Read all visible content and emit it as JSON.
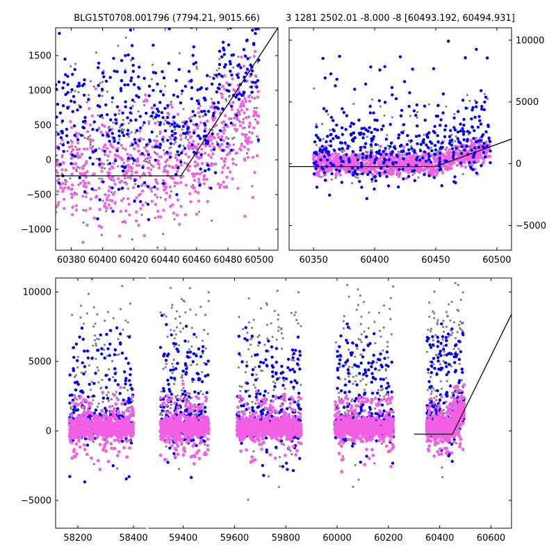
{
  "titles": {
    "left": "BLG15T0708.001796 (7794.21, 9015.66)",
    "right": "3 1281 2502.01 -8.000 -8 [60493.192, 60494.931]"
  },
  "colors": {
    "blue": "#0000ff",
    "magenta": "#f35fe5",
    "gray": "#808080",
    "line": "#000000"
  },
  "chart_data": [
    {
      "type": "scatter",
      "panel": "top-left",
      "xlim": [
        60370,
        60512
      ],
      "ylim": [
        -1300,
        1900
      ],
      "xticks": [
        60380,
        60400,
        60420,
        60440,
        60460,
        60480,
        60500
      ],
      "yticks": [
        -1000,
        -500,
        0,
        500,
        1000,
        1500
      ],
      "y_axis_side": "left",
      "model_line": [
        [
          60370,
          -230
        ],
        [
          60450,
          -230
        ],
        [
          60512,
          1900
        ]
      ],
      "series": [
        {
          "color": "gray",
          "count": 320,
          "x_range": [
            60370,
            60500
          ],
          "y_center": 150,
          "y_spread": 550
        },
        {
          "color": "magenta",
          "count": 620,
          "x_range": [
            60370,
            60500
          ],
          "y_center": -150,
          "y_spread": 420
        },
        {
          "color": "blue",
          "count": 420,
          "x_range": [
            60370,
            60500
          ],
          "y_center": 500,
          "y_spread": 520
        }
      ]
    },
    {
      "type": "scatter",
      "panel": "top-right",
      "xlim": [
        60330,
        60512
      ],
      "ylim": [
        -7000,
        11000
      ],
      "xticks": [
        60350,
        60400,
        60450,
        60500
      ],
      "yticks": [
        -5000,
        0,
        5000,
        10000
      ],
      "y_axis_side": "right",
      "model_line": [
        [
          60330,
          -230
        ],
        [
          60450,
          -230
        ],
        [
          60512,
          2000
        ]
      ],
      "series": [
        {
          "color": "gray",
          "count": 380,
          "x_range": [
            60350,
            60495
          ],
          "y_center": 300,
          "y_spread": 700
        },
        {
          "color": "magenta",
          "count": 900,
          "x_range": [
            60350,
            60495
          ],
          "y_center": 0,
          "y_spread": 450
        },
        {
          "color": "blue",
          "count": 420,
          "x_range": [
            60350,
            60495
          ],
          "y_center": 900,
          "y_spread": 1300
        }
      ]
    },
    {
      "type": "scatter",
      "panel": "bottom",
      "segments": [
        {
          "xlim": [
            58120,
            58450
          ],
          "xticks": [
            58200,
            58400
          ]
        },
        {
          "xlim": [
            59260,
            60680
          ],
          "xticks": [
            59400,
            59600,
            59800,
            60000,
            60200,
            60400,
            60600
          ]
        }
      ],
      "ylim": [
        -7000,
        11000
      ],
      "yticks": [
        -5000,
        0,
        5000,
        10000
      ],
      "y_axis_side": "left",
      "model_line": [
        [
          60300,
          -230
        ],
        [
          60450,
          -230
        ],
        [
          60680,
          8400
        ]
      ],
      "seasons": [
        [
          58170,
          58400
        ],
        [
          59310,
          59500
        ],
        [
          59610,
          59860
        ],
        [
          59990,
          60220
        ],
        [
          60350,
          60495
        ]
      ]
    }
  ]
}
